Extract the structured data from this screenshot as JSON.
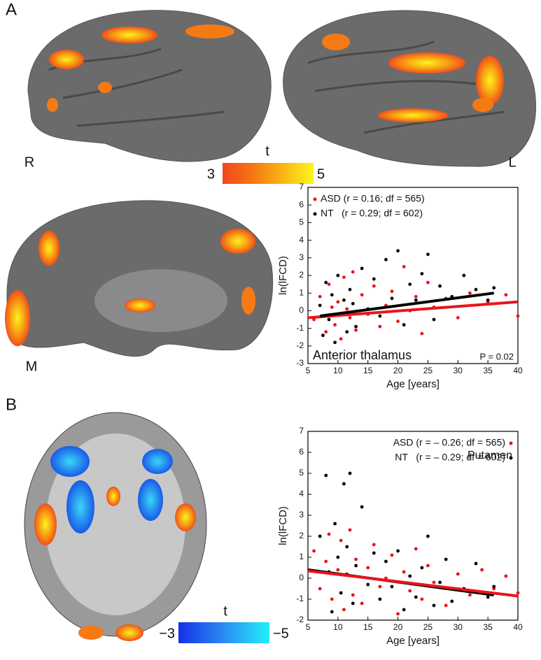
{
  "panel_labels": [
    "A",
    "B"
  ],
  "brain_labels": [
    "R",
    "L",
    "M"
  ],
  "colorbars": [
    {
      "title": "t",
      "min_label": "3",
      "max_label": "5"
    },
    {
      "title": "t",
      "min_label": "−3",
      "max_label": "−5"
    }
  ],
  "chart_data": [
    {
      "type": "scatter",
      "x_label": "Age [years]",
      "y_label": "ln(lFCD)",
      "annotations": [
        "Anterior thalamus",
        "P = 0.02"
      ],
      "legend": "upper left",
      "xlim": [
        5,
        40
      ],
      "xticks": [
        5,
        10,
        15,
        20,
        25,
        30,
        35,
        40
      ],
      "ylim": [
        -3,
        7
      ],
      "yticks": [
        -3,
        -2,
        -1,
        0,
        1,
        2,
        3,
        4,
        5,
        6,
        7
      ],
      "series": [
        {
          "name": "ASD (r = 0.16; df = 565)",
          "color": "#e8151b",
          "x": [
            6,
            7,
            8,
            8.5,
            9,
            9.5,
            10,
            10.5,
            11,
            11.5,
            12,
            12.5,
            13,
            14,
            15,
            16,
            17,
            18,
            19,
            20,
            21,
            22,
            23,
            24,
            25,
            26,
            28,
            30,
            32,
            35,
            38,
            40
          ],
          "values": [
            -0.5,
            0.8,
            -1.2,
            1.5,
            0.2,
            -0.8,
            0.5,
            -1.6,
            1.9,
            0.1,
            -0.4,
            2.2,
            -1.1,
            0.9,
            -0.2,
            1.4,
            -0.9,
            0.3,
            1.1,
            -0.6,
            2.5,
            0.0,
            0.8,
            -1.3,
            1.6,
            0.2,
            0.7,
            -0.4,
            1.0,
            0.5,
            0.9,
            -0.3
          ]
        },
        {
          "name": "NT   (r = 0.29; df = 602)",
          "color": "#000000",
          "x": [
            7,
            7.5,
            8,
            8.5,
            9,
            9.5,
            10,
            10.5,
            11,
            11.5,
            12,
            12.5,
            13,
            14,
            15,
            16,
            17,
            18,
            19,
            20,
            21,
            22,
            23,
            24,
            25,
            26,
            27,
            29,
            31,
            33,
            35,
            36
          ],
          "values": [
            0.3,
            -1.4,
            1.6,
            -0.5,
            0.9,
            -1.8,
            2.0,
            -0.2,
            0.6,
            -1.2,
            1.2,
            0.4,
            -0.9,
            2.4,
            0.1,
            1.8,
            -0.3,
            2.9,
            0.7,
            3.4,
            -0.8,
            1.5,
            0.6,
            2.1,
            3.2,
            -0.5,
            1.4,
            0.8,
            2.0,
            1.2,
            0.6,
            1.3
          ]
        }
      ],
      "fit_lines": [
        {
          "color": "#e8151b",
          "x": [
            5,
            40
          ],
          "values": [
            -0.4,
            0.5
          ]
        },
        {
          "color": "#000000",
          "x": [
            7,
            36
          ],
          "values": [
            -0.3,
            1.0
          ]
        }
      ]
    },
    {
      "type": "scatter",
      "x_label": "Age [years]",
      "y_label": "ln(lFCD)",
      "annotations": [
        "Putamen"
      ],
      "legend": "upper right",
      "xlim": [
        5,
        40
      ],
      "xticks": [
        5,
        10,
        15,
        20,
        25,
        30,
        35,
        40
      ],
      "ylim": [
        -2,
        7
      ],
      "yticks": [
        -2,
        -1,
        0,
        1,
        2,
        3,
        4,
        5,
        6,
        7
      ],
      "series": [
        {
          "name": "ASD (r = – 0.26; df = 565)",
          "color": "#e8151b",
          "x": [
            6,
            7,
            8,
            8.5,
            9,
            10,
            10.5,
            11,
            11.5,
            12,
            12.5,
            13,
            14,
            15,
            16,
            17,
            18,
            19,
            20,
            21,
            22,
            23,
            24,
            25,
            26,
            28,
            30,
            32,
            34,
            36,
            38,
            40
          ],
          "values": [
            1.3,
            -0.5,
            0.8,
            2.1,
            -1.0,
            0.4,
            1.8,
            -1.5,
            0.2,
            2.3,
            -0.8,
            0.9,
            -1.2,
            0.5,
            1.6,
            -0.4,
            0.0,
            1.1,
            -1.7,
            0.3,
            -0.6,
            1.4,
            -1.0,
            0.6,
            -0.2,
            -1.3,
            0.2,
            -0.8,
            0.4,
            -0.5,
            0.1,
            -0.7
          ]
        },
        {
          "name": "NT   (r = – 0.29; df = 602)",
          "color": "#000000",
          "x": [
            7,
            8,
            8.5,
            9,
            9.5,
            10,
            10.5,
            11,
            11.5,
            12,
            12.5,
            13,
            14,
            15,
            16,
            17,
            18,
            19,
            20,
            21,
            22,
            23,
            24,
            25,
            26,
            27,
            28,
            29,
            31,
            33,
            35,
            36
          ],
          "values": [
            2.0,
            4.9,
            0.3,
            -1.6,
            2.6,
            1.0,
            -0.7,
            4.5,
            1.5,
            5.0,
            -1.2,
            0.6,
            3.4,
            -0.3,
            1.2,
            -1.0,
            0.8,
            -0.4,
            1.3,
            -1.5,
            0.1,
            -0.9,
            0.5,
            2.0,
            -1.3,
            -0.2,
            0.9,
            -1.1,
            -0.5,
            0.7,
            -0.9,
            -0.4
          ]
        }
      ],
      "fit_lines": [
        {
          "color": "#000000",
          "x": [
            5,
            36
          ],
          "values": [
            0.4,
            -0.8
          ]
        },
        {
          "color": "#e8151b",
          "x": [
            5,
            40
          ],
          "values": [
            0.35,
            -0.85
          ]
        }
      ]
    }
  ]
}
